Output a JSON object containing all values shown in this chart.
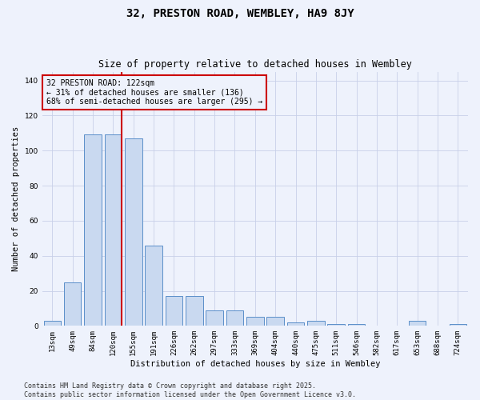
{
  "title": "32, PRESTON ROAD, WEMBLEY, HA9 8JY",
  "subtitle": "Size of property relative to detached houses in Wembley",
  "xlabel": "Distribution of detached houses by size in Wembley",
  "ylabel": "Number of detached properties",
  "categories": [
    "13sqm",
    "49sqm",
    "84sqm",
    "120sqm",
    "155sqm",
    "191sqm",
    "226sqm",
    "262sqm",
    "297sqm",
    "333sqm",
    "369sqm",
    "404sqm",
    "440sqm",
    "475sqm",
    "511sqm",
    "546sqm",
    "582sqm",
    "617sqm",
    "653sqm",
    "688sqm",
    "724sqm"
  ],
  "values": [
    3,
    25,
    109,
    109,
    107,
    46,
    17,
    17,
    9,
    9,
    5,
    5,
    2,
    3,
    1,
    1,
    0,
    0,
    3,
    0,
    1
  ],
  "bar_color": "#c9d9f0",
  "bar_edge_color": "#5b8fc9",
  "red_line_bin": 3,
  "red_line_color": "#cc0000",
  "annotation_text": "32 PRESTON ROAD: 122sqm\n← 31% of detached houses are smaller (136)\n68% of semi-detached houses are larger (295) →",
  "annotation_box_color": "#cc0000",
  "ylim": [
    0,
    145
  ],
  "yticks": [
    0,
    20,
    40,
    60,
    80,
    100,
    120,
    140
  ],
  "footer_text": "Contains HM Land Registry data © Crown copyright and database right 2025.\nContains public sector information licensed under the Open Government Licence v3.0.",
  "bg_color": "#eef2fc",
  "grid_color": "#c8d0e8",
  "title_fontsize": 10,
  "subtitle_fontsize": 8.5,
  "axis_label_fontsize": 7.5,
  "tick_fontsize": 6.5,
  "annotation_fontsize": 7,
  "footer_fontsize": 6
}
